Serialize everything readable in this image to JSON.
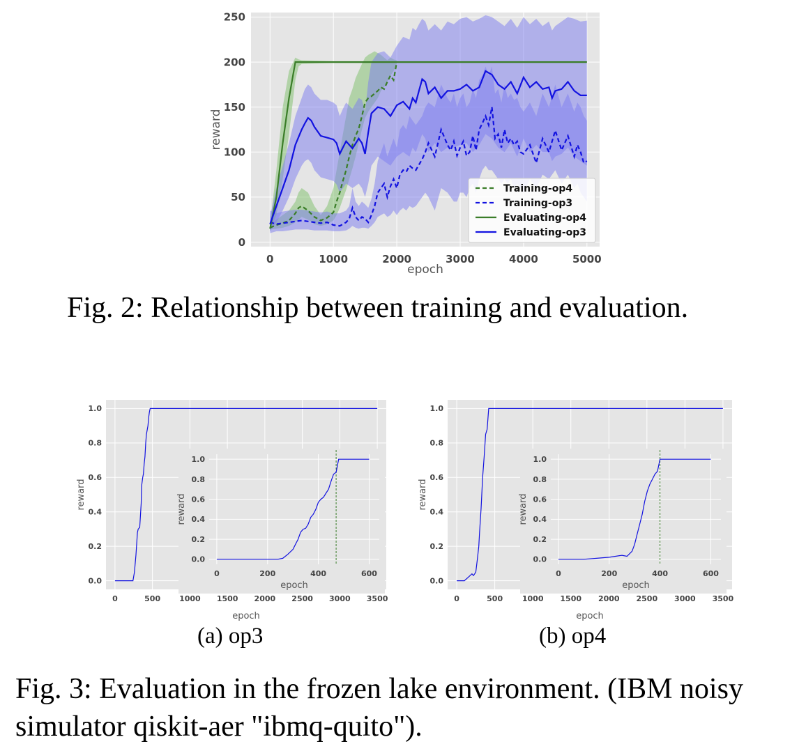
{
  "figure2": {
    "caption": "Fig. 2: Relationship between training and evaluation."
  },
  "figure3": {
    "caption": "Fig. 3: Evaluation in the frozen lake environment. (IBM noisy simulator qiskit-aer \"ibmq-quito\").",
    "subcaption_a": "(a) op3",
    "subcaption_b": "(b) op4"
  },
  "colors": {
    "green": "#3a7d28",
    "blue": "#1212e0",
    "green_band": "#7dbf6a",
    "blue_band": "#7b7bf0",
    "plot_bg": "#e5e5e5",
    "grid": "#ffffff"
  },
  "chart_data": [
    {
      "id": "fig2",
      "type": "line",
      "xlabel": "epoch",
      "ylabel": "reward",
      "xlim": [
        -300,
        5200
      ],
      "ylim": [
        -5,
        255
      ],
      "xticks": [
        0,
        1000,
        2000,
        3000,
        4000,
        5000
      ],
      "yticks": [
        0,
        50,
        100,
        150,
        200,
        250
      ],
      "grid": true,
      "legend_position": "lower-right",
      "series": [
        {
          "name": "Training-op4",
          "style": "dashed",
          "color": "green",
          "x": [
            0,
            100,
            200,
            300,
            350,
            400,
            450,
            500,
            600,
            700,
            750,
            800,
            900,
            1000,
            1050,
            1100,
            1150,
            1200,
            1250,
            1300,
            1350,
            1400,
            1450,
            1500,
            1550,
            1600,
            1650,
            1700,
            1750,
            1800,
            1850,
            1900,
            1950,
            2000
          ],
          "y": [
            16,
            19,
            21,
            24,
            28,
            32,
            38,
            40,
            35,
            28,
            26,
            24,
            27,
            33,
            45,
            55,
            68,
            80,
            95,
            108,
            118,
            126,
            140,
            155,
            160,
            162,
            165,
            168,
            172,
            170,
            178,
            185,
            180,
            200
          ],
          "band_low": [
            14,
            15,
            16,
            18,
            20,
            22,
            25,
            28,
            25,
            20,
            19,
            18,
            20,
            24,
            30,
            38,
            48,
            58,
            70,
            82,
            95,
            110,
            125,
            138,
            145,
            150,
            155,
            160,
            168,
            172,
            178,
            185,
            190,
            198
          ],
          "band_high": [
            20,
            25,
            30,
            35,
            40,
            45,
            55,
            60,
            55,
            40,
            35,
            30,
            40,
            60,
            80,
            100,
            120,
            140,
            160,
            170,
            182,
            190,
            198,
            205,
            208,
            210,
            212,
            210,
            208,
            205,
            202,
            205,
            203,
            202
          ]
        },
        {
          "name": "Training-op3",
          "style": "dashed",
          "color": "blue",
          "x": [
            0,
            100,
            200,
            300,
            400,
            500,
            600,
            700,
            800,
            900,
            1000,
            1100,
            1200,
            1250,
            1300,
            1350,
            1400,
            1450,
            1500,
            1550,
            1600,
            1650,
            1700,
            1750,
            1800,
            1850,
            1900,
            1950,
            2000,
            2050,
            2100,
            2150,
            2200,
            2250,
            2300,
            2350,
            2400,
            2450,
            2500,
            2600,
            2700,
            2800,
            2850,
            2900,
            2950,
            3000,
            3050,
            3100,
            3150,
            3200,
            3250,
            3300,
            3350,
            3400,
            3450,
            3500,
            3550,
            3600,
            3650,
            3700,
            3750,
            3800,
            3850,
            3900,
            3950,
            4000,
            4100,
            4200,
            4300,
            4400,
            4500,
            4600,
            4700,
            4800,
            4850,
            4900,
            4950,
            5000
          ],
          "y": [
            22,
            20,
            21,
            22,
            23,
            24,
            23,
            22,
            21,
            22,
            19,
            18,
            22,
            26,
            38,
            28,
            24,
            28,
            26,
            22,
            30,
            40,
            55,
            60,
            65,
            50,
            62,
            70,
            60,
            75,
            80,
            78,
            85,
            82,
            80,
            86,
            92,
            100,
            110,
            95,
            125,
            108,
            102,
            112,
            96,
            105,
            112,
            96,
            100,
            118,
            102,
            125,
            132,
            140,
            130,
            150,
            115,
            120,
            105,
            125,
            110,
            115,
            108,
            112,
            100,
            98,
            108,
            88,
            115,
            100,
            124,
            102,
            118,
            95,
            108,
            100,
            88,
            90
          ],
          "band_low": [
            10,
            12,
            12,
            13,
            14,
            14,
            14,
            13,
            13,
            13,
            12,
            12,
            13,
            15,
            18,
            16,
            15,
            16,
            16,
            15,
            18,
            22,
            28,
            30,
            32,
            28,
            30,
            35,
            30,
            35,
            38,
            35,
            40,
            38,
            40,
            45,
            50,
            55,
            50,
            35,
            60,
            55,
            50,
            45,
            45,
            55,
            55,
            50,
            60,
            65,
            55,
            70,
            80,
            85,
            80,
            80,
            75,
            70,
            65,
            70,
            65,
            70,
            60,
            65,
            60,
            55,
            70,
            60,
            75,
            70,
            80,
            65,
            75,
            60,
            65,
            55,
            50,
            45
          ],
          "band_high": [
            35,
            32,
            34,
            35,
            36,
            36,
            35,
            34,
            33,
            34,
            32,
            32,
            35,
            40,
            60,
            45,
            40,
            45,
            42,
            38,
            48,
            65,
            90,
            100,
            110,
            95,
            105,
            115,
            105,
            125,
            130,
            125,
            140,
            135,
            130,
            135,
            140,
            150,
            155,
            150,
            175,
            160,
            155,
            165,
            150,
            160,
            165,
            150,
            155,
            170,
            160,
            180,
            185,
            195,
            185,
            195,
            165,
            170,
            155,
            175,
            160,
            165,
            158,
            160,
            150,
            145,
            155,
            140,
            165,
            150,
            175,
            150,
            165,
            145,
            155,
            150,
            140,
            135
          ]
        },
        {
          "name": "Evaluating-op4",
          "style": "solid",
          "color": "green",
          "x": [
            0,
            100,
            200,
            300,
            400,
            450,
            500,
            1000,
            2000,
            3000,
            4000,
            5000
          ],
          "y": [
            15,
            50,
            110,
            160,
            200,
            200,
            200,
            200,
            200,
            200,
            200,
            200
          ],
          "band_low": [
            12,
            30,
            70,
            120,
            180,
            195,
            198,
            199,
            199,
            199,
            199,
            199
          ],
          "band_high": [
            20,
            80,
            150,
            190,
            205,
            203,
            202,
            201,
            201,
            201,
            201,
            201
          ]
        },
        {
          "name": "Evaluating-op3",
          "style": "solid",
          "color": "blue",
          "x": [
            0,
            100,
            200,
            300,
            400,
            500,
            550,
            600,
            650,
            700,
            800,
            900,
            1000,
            1050,
            1100,
            1150,
            1200,
            1300,
            1400,
            1450,
            1500,
            1550,
            1600,
            1700,
            1800,
            1900,
            2000,
            2100,
            2200,
            2250,
            2300,
            2350,
            2400,
            2450,
            2500,
            2600,
            2700,
            2800,
            2900,
            3000,
            3100,
            3200,
            3300,
            3400,
            3500,
            3600,
            3700,
            3800,
            3900,
            4000,
            4100,
            4200,
            4300,
            4400,
            4450,
            4500,
            4600,
            4700,
            4800,
            4900,
            5000
          ],
          "y": [
            20,
            40,
            60,
            80,
            108,
            125,
            132,
            138,
            135,
            128,
            118,
            116,
            114,
            110,
            98,
            105,
            112,
            104,
            115,
            110,
            98,
            122,
            143,
            150,
            148,
            140,
            152,
            156,
            148,
            160,
            155,
            168,
            181,
            178,
            165,
            172,
            160,
            168,
            168,
            170,
            175,
            168,
            172,
            190,
            186,
            175,
            170,
            178,
            165,
            183,
            172,
            178,
            170,
            172,
            160,
            168,
            170,
            178,
            168,
            163,
            163
          ],
          "band_low": [
            12,
            22,
            35,
            50,
            70,
            85,
            90,
            92,
            88,
            80,
            72,
            70,
            68,
            64,
            55,
            60,
            65,
            60,
            65,
            60,
            50,
            65,
            85,
            95,
            90,
            85,
            95,
            100,
            95,
            105,
            100,
            110,
            120,
            115,
            100,
            110,
            100,
            105,
            105,
            108,
            110,
            100,
            108,
            120,
            115,
            105,
            100,
            110,
            95,
            115,
            100,
            108,
            100,
            100,
            90,
            95,
            98,
            105,
            95,
            90,
            85
          ],
          "band_high": [
            28,
            60,
            85,
            110,
            140,
            160,
            170,
            175,
            172,
            165,
            158,
            158,
            155,
            152,
            140,
            148,
            155,
            148,
            160,
            158,
            145,
            178,
            200,
            210,
            212,
            205,
            218,
            228,
            225,
            238,
            235,
            242,
            248,
            245,
            235,
            242,
            235,
            245,
            242,
            248,
            250,
            245,
            248,
            252,
            250,
            245,
            240,
            248,
            238,
            250,
            242,
            248,
            240,
            245,
            235,
            240,
            245,
            250,
            248,
            245,
            246
          ]
        }
      ]
    },
    {
      "id": "fig3a_main",
      "type": "line",
      "panel": "(a) op3",
      "xlabel": "epoch",
      "ylabel": "reward",
      "xlim": [
        -120,
        3620
      ],
      "ylim": [
        -0.05,
        1.05
      ],
      "xticks": [
        0,
        500,
        1000,
        1500,
        2000,
        2500,
        3000,
        3500
      ],
      "yticks": [
        0.0,
        0.2,
        0.4,
        0.6,
        0.8,
        1.0
      ],
      "grid": true,
      "series": [
        {
          "name": "",
          "style": "solid",
          "color": "blue",
          "x": [
            0,
            150,
            240,
            260,
            280,
            300,
            310,
            330,
            350,
            355,
            370,
            380,
            390,
            400,
            410,
            420,
            440,
            450,
            460,
            470,
            480,
            500,
            3500
          ],
          "y": [
            0.0,
            0.0,
            0.0,
            0.05,
            0.15,
            0.28,
            0.3,
            0.31,
            0.45,
            0.55,
            0.6,
            0.62,
            0.68,
            0.72,
            0.8,
            0.85,
            0.9,
            0.95,
            0.98,
            1.0,
            1.0,
            1.0,
            1.0
          ]
        }
      ]
    },
    {
      "id": "fig3a_inset",
      "type": "line",
      "panel": "(a) op3 inset",
      "xlabel": "epoch",
      "ylabel": "reward",
      "xlim": [
        -30,
        640
      ],
      "ylim": [
        -0.05,
        1.05
      ],
      "xticks": [
        0,
        200,
        400,
        600
      ],
      "yticks": [
        0.0,
        0.2,
        0.4,
        0.6,
        0.8,
        1.0
      ],
      "grid": true,
      "vline_x": 470,
      "series": [
        {
          "name": "",
          "style": "solid",
          "color": "blue",
          "x": [
            0,
            100,
            200,
            240,
            260,
            280,
            300,
            310,
            320,
            330,
            340,
            350,
            360,
            370,
            380,
            390,
            400,
            410,
            420,
            430,
            440,
            450,
            460,
            470,
            480,
            600
          ],
          "y": [
            0.0,
            0.0,
            0.0,
            0.0,
            0.01,
            0.05,
            0.1,
            0.15,
            0.2,
            0.27,
            0.3,
            0.31,
            0.35,
            0.42,
            0.45,
            0.5,
            0.57,
            0.6,
            0.62,
            0.66,
            0.7,
            0.78,
            0.85,
            0.87,
            1.0,
            1.0
          ]
        }
      ]
    },
    {
      "id": "fig3b_main",
      "type": "line",
      "panel": "(b) op4",
      "xlabel": "epoch",
      "ylabel": "reward",
      "xlim": [
        -120,
        3620
      ],
      "ylim": [
        -0.05,
        1.05
      ],
      "xticks": [
        0,
        500,
        1000,
        1500,
        2000,
        2500,
        3000,
        3500
      ],
      "yticks": [
        0.0,
        0.2,
        0.4,
        0.6,
        0.8,
        1.0
      ],
      "grid": true,
      "series": [
        {
          "name": "",
          "style": "solid",
          "color": "blue",
          "x": [
            0,
            100,
            150,
            200,
            220,
            250,
            270,
            290,
            300,
            320,
            340,
            360,
            380,
            400,
            420,
            3500
          ],
          "y": [
            0.0,
            0.0,
            0.02,
            0.04,
            0.03,
            0.05,
            0.12,
            0.2,
            0.28,
            0.42,
            0.6,
            0.72,
            0.85,
            0.88,
            1.0,
            1.0
          ]
        }
      ]
    },
    {
      "id": "fig3b_inset",
      "type": "line",
      "panel": "(b) op4 inset",
      "xlabel": "epoch",
      "ylabel": "reward",
      "xlim": [
        -30,
        640
      ],
      "ylim": [
        -0.05,
        1.05
      ],
      "xticks": [
        0,
        200,
        400,
        600
      ],
      "yticks": [
        0.0,
        0.2,
        0.4,
        0.6,
        0.8,
        1.0
      ],
      "grid": true,
      "vline_x": 400,
      "series": [
        {
          "name": "",
          "style": "solid",
          "color": "blue",
          "x": [
            0,
            100,
            150,
            200,
            250,
            270,
            290,
            300,
            310,
            320,
            330,
            340,
            350,
            360,
            370,
            380,
            390,
            400,
            600
          ],
          "y": [
            0.0,
            0.0,
            0.01,
            0.02,
            0.04,
            0.03,
            0.08,
            0.15,
            0.25,
            0.35,
            0.45,
            0.58,
            0.68,
            0.75,
            0.8,
            0.85,
            0.88,
            1.0,
            1.0
          ]
        }
      ]
    }
  ]
}
